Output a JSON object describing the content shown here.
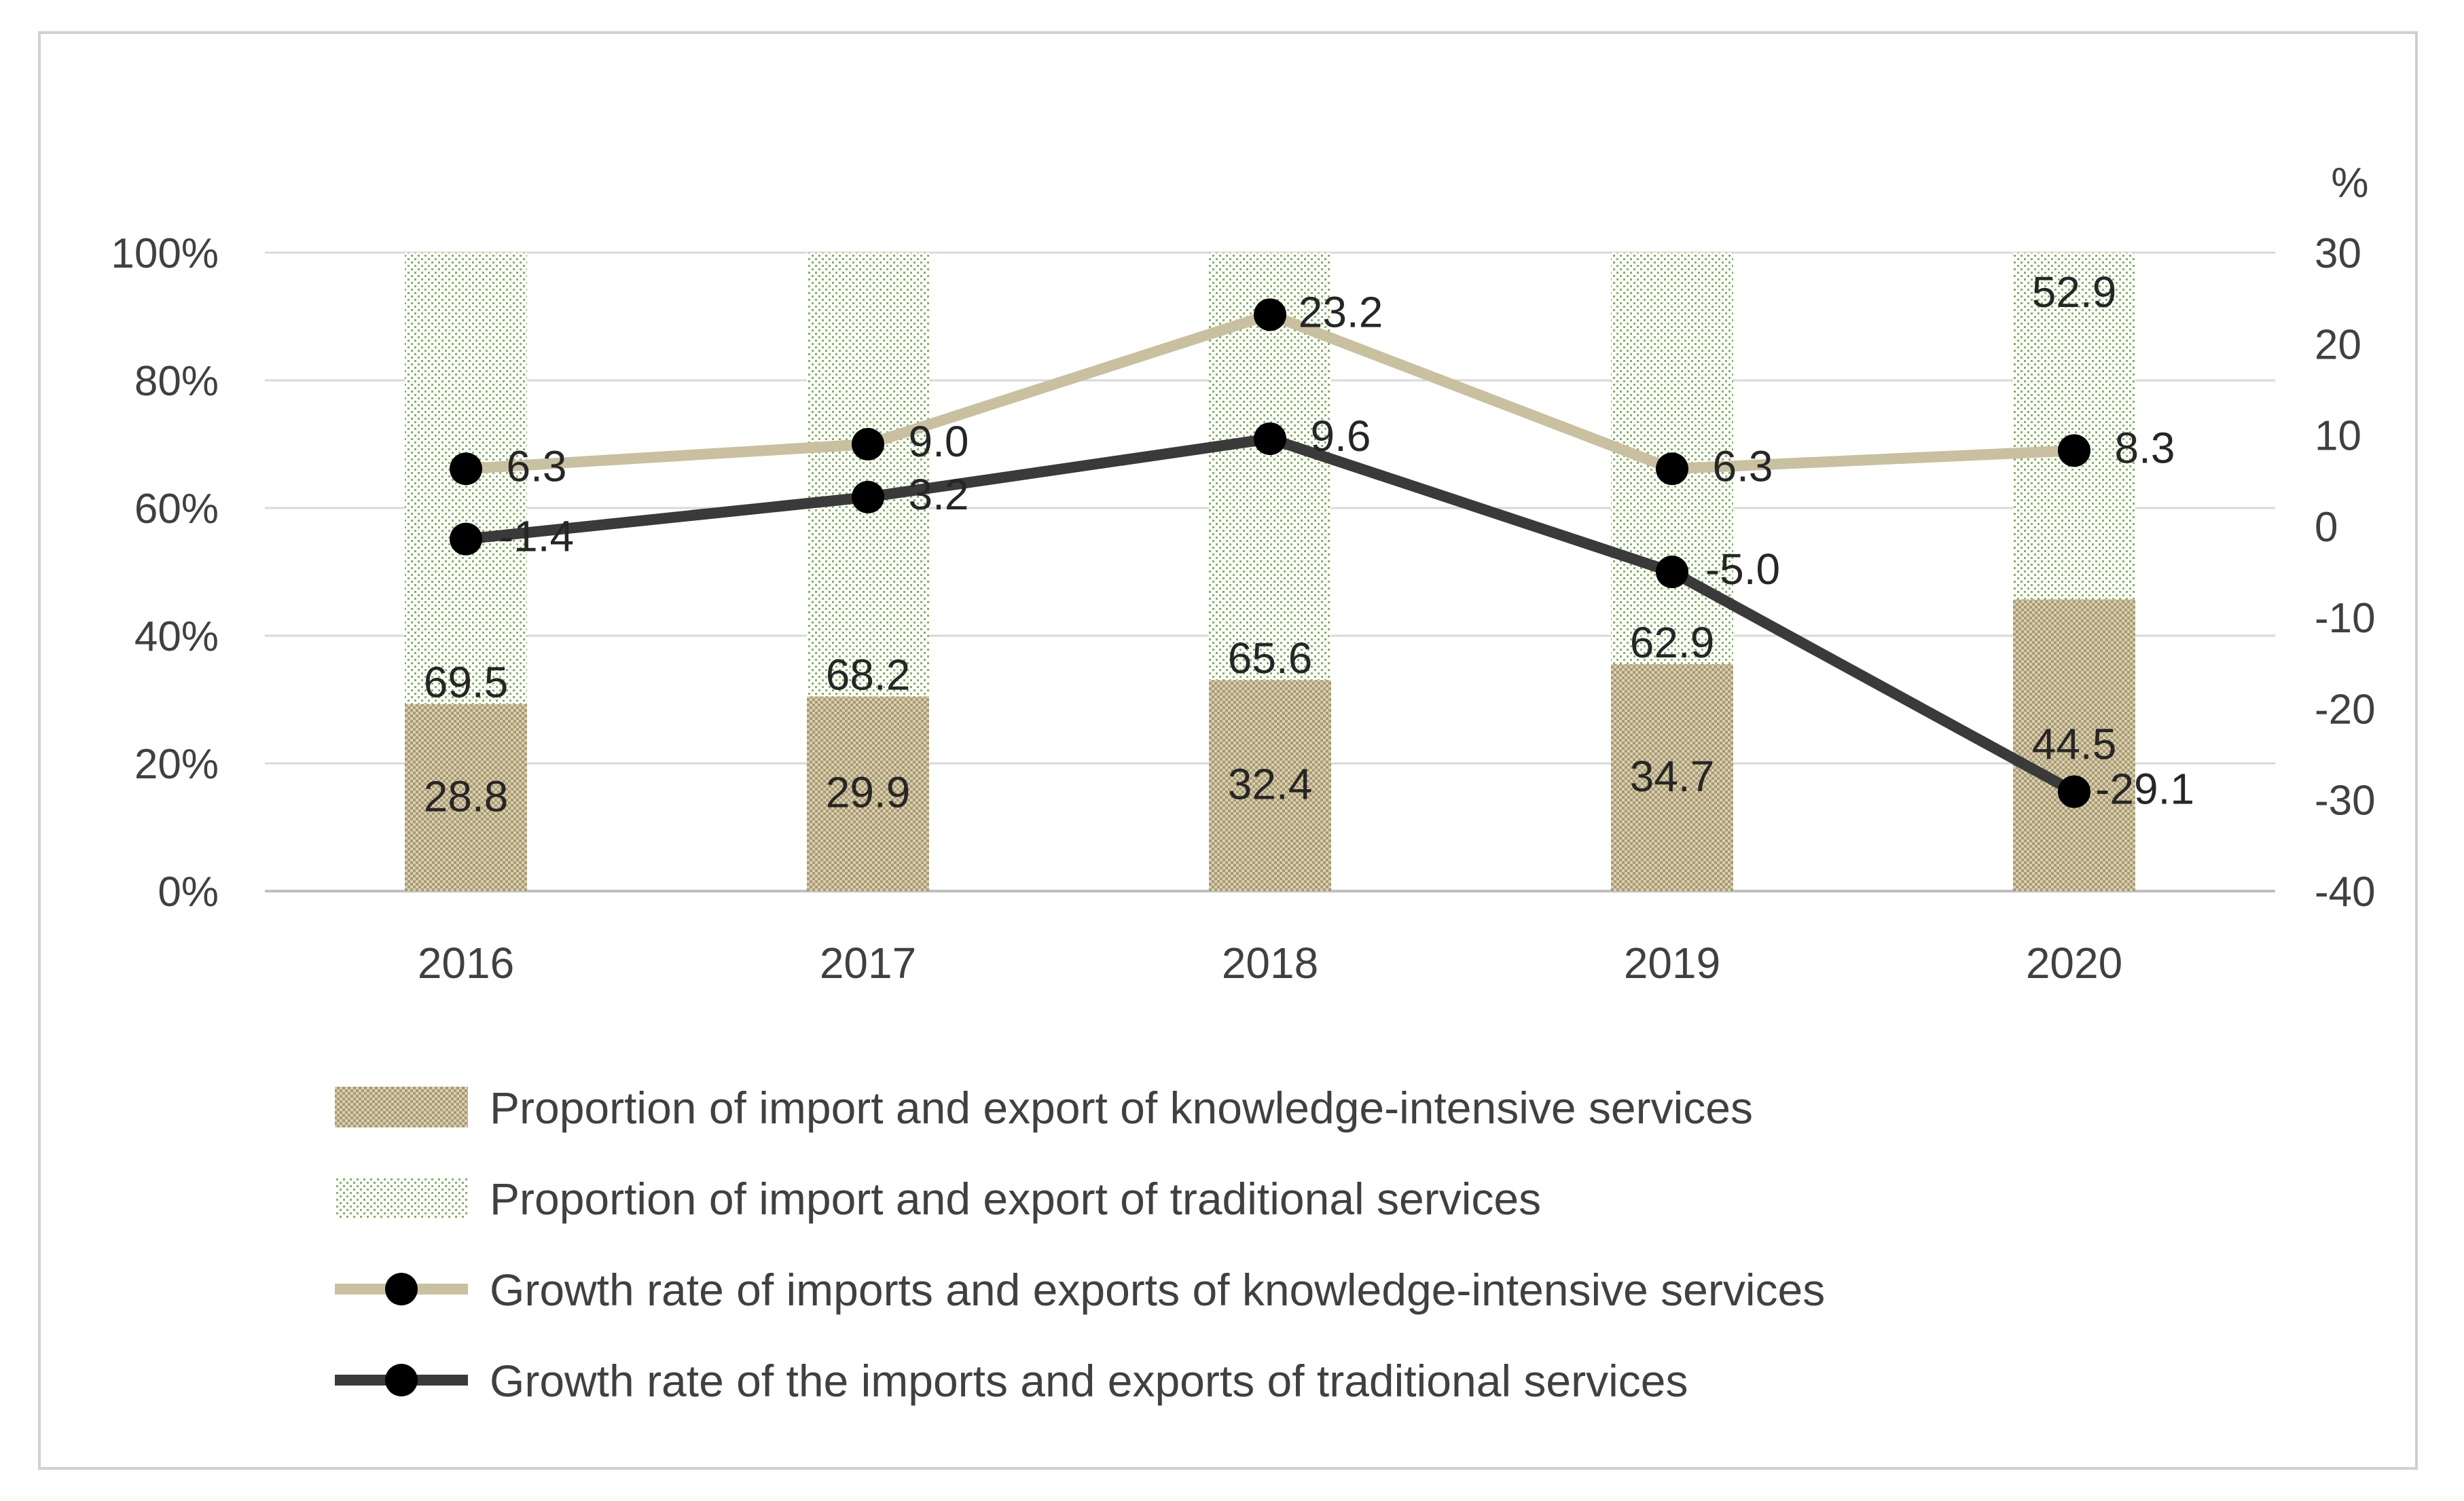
{
  "chart_data": {
    "type": "bar",
    "categories": [
      "2016",
      "2017",
      "2018",
      "2019",
      "2020"
    ],
    "left_axis": {
      "ticks": [
        "100%",
        "80%",
        "60%",
        "40%",
        "20%",
        "0%"
      ],
      "ylim": [
        0,
        100
      ]
    },
    "right_axis": {
      "unit": "%",
      "ticks": [
        "30",
        "20",
        "10",
        "0",
        "-10",
        "-20",
        "-30",
        "-40"
      ],
      "ylim": [
        -40,
        30
      ]
    },
    "grid": true,
    "legend_position": "bottom",
    "series": [
      {
        "name": "Proportion of import and export of knowledge-intensive services",
        "type": "bar",
        "axis": "left",
        "values": [
          28.8,
          29.9,
          32.4,
          34.7,
          44.5
        ],
        "labels": [
          "28.8",
          "29.9",
          "32.4",
          "34.7",
          "44.5"
        ],
        "color": "#b3a784",
        "pattern": "dense-dots"
      },
      {
        "name": "Proportion of import and export of traditional services",
        "type": "bar",
        "axis": "left",
        "values": [
          69.5,
          68.2,
          65.6,
          62.9,
          52.9
        ],
        "labels": [
          "69.5",
          "68.2",
          "65.6",
          "62.9",
          "52.9"
        ],
        "color": "#70ad47",
        "pattern": "sparse-dots"
      },
      {
        "name": "Growth rate of  imports and exports of  knowledge-intensive services",
        "type": "line",
        "axis": "right",
        "values": [
          6.3,
          9.0,
          23.2,
          6.3,
          8.3
        ],
        "labels": [
          "6.3",
          "9.0",
          "23.2",
          "6.3",
          "8.3"
        ],
        "color": "#c9c0a0",
        "marker_color": "#000000"
      },
      {
        "name": "Growth rate of the imports and exports of  traditional services",
        "type": "line",
        "axis": "right",
        "values": [
          -1.4,
          3.2,
          9.6,
          -5.0,
          -29.1
        ],
        "labels": [
          "-1.4",
          "3.2",
          "9.6",
          "-5.0",
          "-29.1"
        ],
        "color": "#3a3a3a",
        "marker_color": "#000000"
      }
    ]
  }
}
